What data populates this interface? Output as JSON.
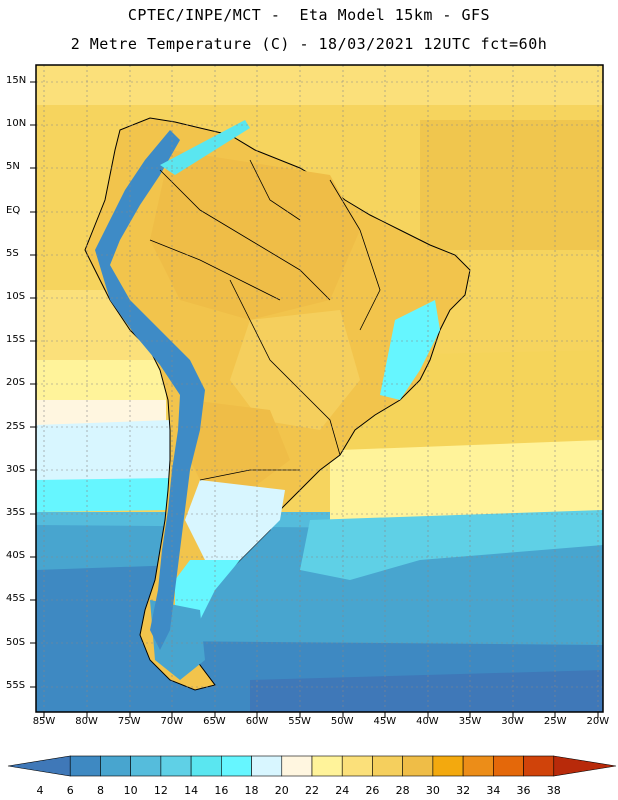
{
  "header": {
    "title_line1": "CPTEC/INPE/MCT -  Eta Model 15km - GFS",
    "title_line2": "2 Metre Temperature (C) - 18/03/2021 12UTC fct=60h"
  },
  "map": {
    "lat_labels": [
      "15N",
      "10N",
      "5N",
      "EQ",
      "5S",
      "10S",
      "15S",
      "20S",
      "25S",
      "30S",
      "35S",
      "40S",
      "45S",
      "50S",
      "55S"
    ],
    "lon_labels": [
      "85W",
      "80W",
      "75W",
      "70W",
      "65W",
      "60W",
      "55W",
      "50W",
      "45W",
      "40W",
      "35W",
      "30W",
      "25W",
      "20W"
    ],
    "colors": {
      "ocean_warm": "#f5d45a",
      "ocean_hot": "#eec24a",
      "land_hot": "#f2c44c",
      "cool_water": "#5fd6e6",
      "cold_water": "#3aa7d0",
      "deep_cold": "#2f74b4",
      "andes": "#3e8bc6",
      "border": "#000000",
      "grid": "#888888"
    }
  },
  "colorbar": {
    "values": [
      "4",
      "6",
      "8",
      "10",
      "12",
      "14",
      "16",
      "18",
      "20",
      "22",
      "24",
      "26",
      "28",
      "30",
      "32",
      "34",
      "36",
      "38"
    ],
    "colors": [
      "#3f78b8",
      "#3e89c2",
      "#48a5cf",
      "#55bcdc",
      "#5fd0e6",
      "#5ae6f0",
      "#66f6ff",
      "#d8f6ff",
      "#fff6e0",
      "#fff39a",
      "#fbe07a",
      "#f5cf5d",
      "#efbd47",
      "#f3a90e",
      "#ec8d18",
      "#e4680a",
      "#d0430a",
      "#b82a0a"
    ]
  }
}
